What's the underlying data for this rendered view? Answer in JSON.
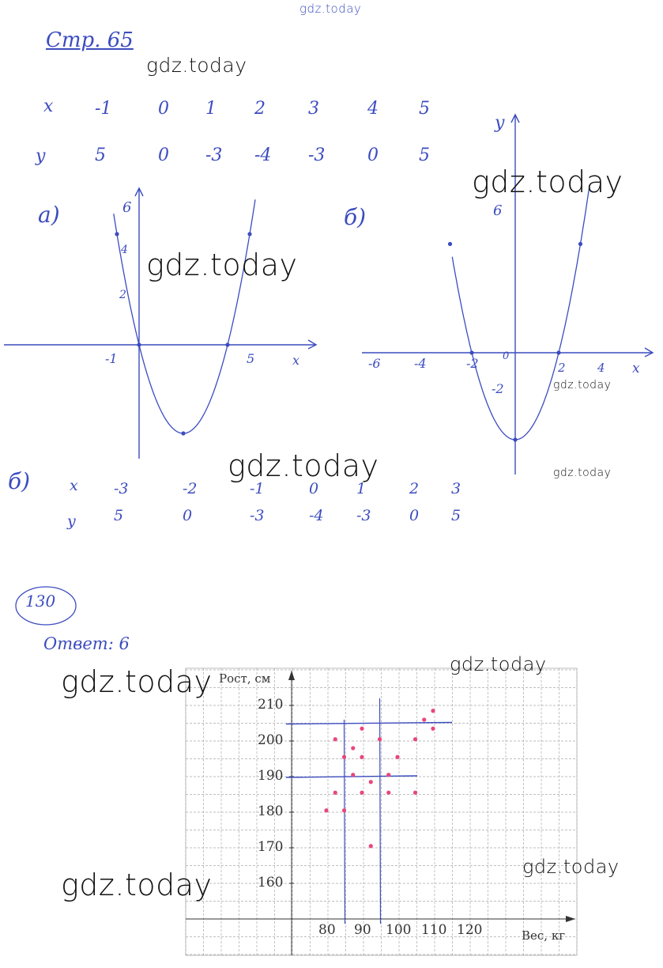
{
  "header": {
    "page_label": "Стр. 65"
  },
  "table_a": {
    "x_label": "x",
    "y_label": "y",
    "x": [
      "-1",
      "0",
      "1",
      "2",
      "3",
      "4",
      "5"
    ],
    "y": [
      "5",
      "0",
      "-3",
      "-4",
      "-3",
      "0",
      "5"
    ]
  },
  "graph_a": {
    "label": "а)",
    "y_ticks": [
      "6",
      "4",
      "2"
    ],
    "x_ticks": [
      "-1",
      "5"
    ],
    "x_axis": "x"
  },
  "graph_b": {
    "label": "б)",
    "y_axis": "y",
    "y_ticks": [
      "6",
      "-2"
    ],
    "x_ticks": [
      "-6",
      "-4",
      "-2",
      "0",
      "2",
      "4"
    ],
    "x_axis": "x"
  },
  "table_b": {
    "label": "б)",
    "x_label": "x",
    "y_label": "y",
    "x": [
      "-3",
      "-2",
      "-1",
      "0",
      "1",
      "2",
      "3"
    ],
    "y": [
      "5",
      "0",
      "-3",
      "-4",
      "-3",
      "0",
      "5"
    ]
  },
  "task": {
    "number": "130",
    "answer": "Ответ: 6"
  },
  "watermarks": [
    "gdz.today",
    "gdz.today",
    "gdz.today",
    "gdz.today",
    "gdz.today",
    "gdz.today",
    "gdz.today",
    "gdz.today",
    "gdz.today",
    "gdz.today",
    "gdz.today"
  ],
  "colors": {
    "ink": "#3c4cbf",
    "points": "#e8477a",
    "grid": "#9a9a9a"
  },
  "chart_data": {
    "type": "scatter",
    "xlabel": "Вес, кг",
    "ylabel": "Рост, см",
    "x_ticks": [
      "80",
      "90",
      "100",
      "110",
      "120"
    ],
    "y_ticks": [
      "160",
      "170",
      "180",
      "190",
      "200",
      "210"
    ],
    "xlim": [
      70,
      125
    ],
    "ylim": [
      150,
      212
    ],
    "grid": true,
    "points": [
      [
        80,
        180.5
      ],
      [
        82.5,
        200.5
      ],
      [
        82.5,
        185.5
      ],
      [
        85,
        195.5
      ],
      [
        85,
        180.5
      ],
      [
        87.5,
        198
      ],
      [
        87.5,
        190.5
      ],
      [
        90,
        203.5
      ],
      [
        90,
        195.5
      ],
      [
        90,
        185.5
      ],
      [
        92.5,
        188.5
      ],
      [
        92.5,
        170.5
      ],
      [
        95,
        200.5
      ],
      [
        97.5,
        190.5
      ],
      [
        97.5,
        185.5
      ],
      [
        100,
        195.5
      ],
      [
        105,
        200.5
      ],
      [
        105,
        185.5
      ],
      [
        107.5,
        206
      ],
      [
        110,
        208.5
      ],
      [
        110,
        203.5
      ]
    ],
    "hand_lines": {
      "horizontal": [
        205,
        190
      ],
      "vertical": [
        85,
        95
      ]
    }
  }
}
